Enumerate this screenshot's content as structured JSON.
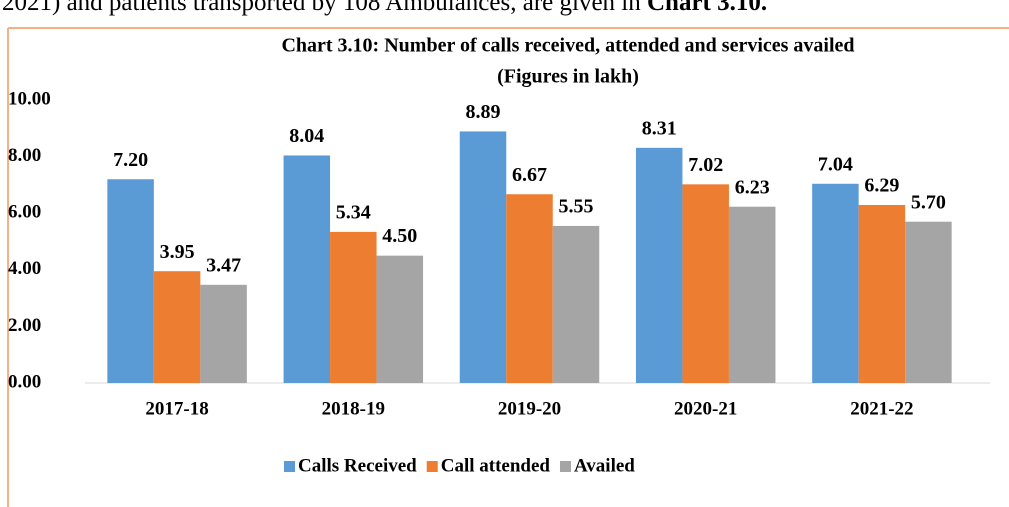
{
  "context_text": {
    "plain": "2021) and patients transported by 108 Ambulances, are given in ",
    "bold": "Chart 3.10."
  },
  "chart_data": {
    "type": "bar",
    "title": "Chart 3.10: Number of calls received, attended and services availed",
    "subtitle": "(Figures in lakh)",
    "categories": [
      "2017-18",
      "2018-19",
      "2019-20",
      "2020-21",
      "2021-22"
    ],
    "series": [
      {
        "name": "Calls Received",
        "color": "#5b9bd5",
        "values": [
          7.2,
          8.04,
          8.89,
          8.31,
          7.04
        ],
        "value_labels": [
          "7.20",
          "8.04",
          "8.89",
          "8.31",
          "7.04"
        ]
      },
      {
        "name": "Call attended",
        "color": "#ed7d31",
        "values": [
          3.95,
          5.34,
          6.67,
          7.02,
          6.29
        ],
        "value_labels": [
          "3.95",
          "5.34",
          "6.67",
          "7.02",
          "6.29"
        ]
      },
      {
        "name": "Availed",
        "color": "#a5a5a5",
        "values": [
          3.47,
          4.5,
          5.55,
          6.23,
          5.7
        ],
        "value_labels": [
          "3.47",
          "4.50",
          "5.55",
          "6.23",
          "5.70"
        ]
      }
    ],
    "ylim": [
      0,
      10
    ],
    "yticks": [
      {
        "value": 0,
        "label": "0.00"
      },
      {
        "value": 2,
        "label": "2.00"
      },
      {
        "value": 4,
        "label": "4.00"
      },
      {
        "value": 6,
        "label": "6.00"
      },
      {
        "value": 8,
        "label": "8.00"
      },
      {
        "value": 10,
        "label": "10.00"
      }
    ],
    "grid": false,
    "legend": "bottom"
  }
}
